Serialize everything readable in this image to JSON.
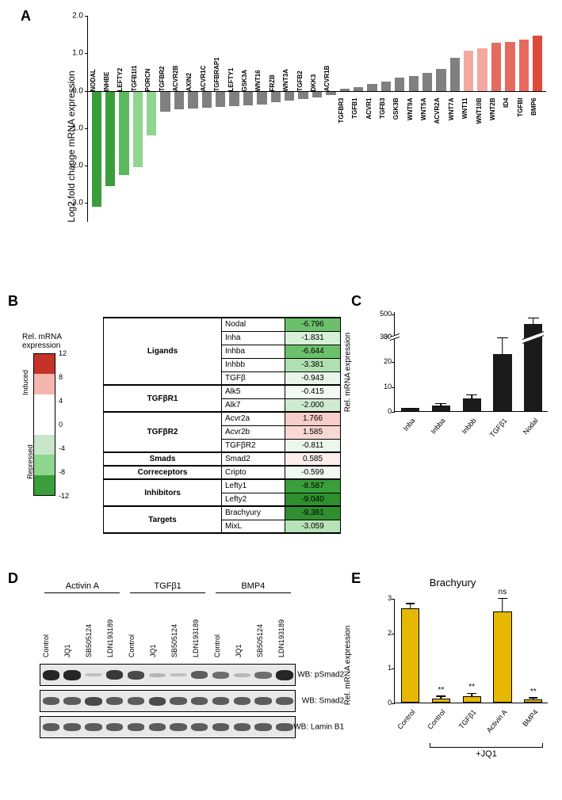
{
  "panelA": {
    "label": "A",
    "ylabel": "Log2 fold change mRNA expression",
    "ylim": [
      -3.5,
      2.0
    ],
    "ytick_step": 1.0,
    "colors": {
      "green_dark": "#3a9e3a",
      "green_mid": "#5cb85c",
      "green_light": "#8ed68e",
      "gray": "#808080",
      "pink_light": "#f4a8a0",
      "red_mid": "#e66b5f",
      "red_dark": "#e04a3c"
    },
    "bars": [
      {
        "name": "NODAL",
        "val": -3.1,
        "color": "#3a9e3a"
      },
      {
        "name": "INHBE",
        "val": -2.55,
        "color": "#3a9e3a"
      },
      {
        "name": "LEFTY2",
        "val": -2.25,
        "color": "#5cb85c"
      },
      {
        "name": "TGFB1I1",
        "val": -2.05,
        "color": "#8ed68e"
      },
      {
        "name": "PORCN",
        "val": -1.2,
        "color": "#8ed68e"
      },
      {
        "name": "TGFBR2",
        "val": -0.55,
        "color": "#808080"
      },
      {
        "name": "ACVR2B",
        "val": -0.5,
        "color": "#808080"
      },
      {
        "name": "AXIN2",
        "val": -0.48,
        "color": "#808080"
      },
      {
        "name": "ACVR1C",
        "val": -0.46,
        "color": "#808080"
      },
      {
        "name": "TGFBRAP1",
        "val": -0.44,
        "color": "#808080"
      },
      {
        "name": "LEFTY1",
        "val": -0.42,
        "color": "#808080"
      },
      {
        "name": "GSK3A",
        "val": -0.4,
        "color": "#808080"
      },
      {
        "name": "WNT16",
        "val": -0.36,
        "color": "#808080"
      },
      {
        "name": "FRZB",
        "val": -0.3,
        "color": "#808080"
      },
      {
        "name": "WNT3A",
        "val": -0.26,
        "color": "#808080"
      },
      {
        "name": "TGFB2",
        "val": -0.22,
        "color": "#808080"
      },
      {
        "name": "DKK3",
        "val": -0.18,
        "color": "#808080"
      },
      {
        "name": "ACVR1B",
        "val": -0.12,
        "color": "#808080"
      },
      {
        "name": "TGFBR3",
        "val": 0.05,
        "color": "#808080"
      },
      {
        "name": "TGFB1",
        "val": 0.1,
        "color": "#808080"
      },
      {
        "name": "ACVR1",
        "val": 0.18,
        "color": "#808080"
      },
      {
        "name": "TGFB3",
        "val": 0.24,
        "color": "#808080"
      },
      {
        "name": "GSK3B",
        "val": 0.36,
        "color": "#808080"
      },
      {
        "name": "WNT9A",
        "val": 0.4,
        "color": "#808080"
      },
      {
        "name": "WNT5A",
        "val": 0.48,
        "color": "#808080"
      },
      {
        "name": "ACVR2A",
        "val": 0.58,
        "color": "#808080"
      },
      {
        "name": "WNT7A",
        "val": 0.88,
        "color": "#808080"
      },
      {
        "name": "WNT11",
        "val": 1.08,
        "color": "#f4a8a0"
      },
      {
        "name": "WNT10B",
        "val": 1.14,
        "color": "#f4a8a0"
      },
      {
        "name": "WNT2B",
        "val": 1.28,
        "color": "#e66b5f"
      },
      {
        "name": "ID4",
        "val": 1.3,
        "color": "#e66b5f"
      },
      {
        "name": "TGFBI",
        "val": 1.36,
        "color": "#e66b5f"
      },
      {
        "name": "BMP6",
        "val": 1.48,
        "color": "#e04a3c"
      }
    ]
  },
  "panelB": {
    "label": "B",
    "colorbar": {
      "title": "Rel. mRNA\nexpression",
      "side_induced": "Induced",
      "side_repressed": "Repressed",
      "ticks": [
        12,
        8,
        4,
        0,
        -4,
        -8,
        -12
      ],
      "box_colors": [
        "#c73228",
        "#f4b6ae",
        "#ffffff",
        "#ffffff",
        "#c8e6c9",
        "#8ed68e",
        "#3a9e3a"
      ]
    },
    "groups": [
      {
        "name": "Ligands",
        "rows": [
          {
            "gene": "Nodal",
            "val": -6.796,
            "bg": "#6cc06c"
          },
          {
            "gene": "Inha",
            "val": -1.831,
            "bg": "#d8efd8"
          },
          {
            "gene": "Inhba",
            "val": -6.644,
            "bg": "#6cc06c"
          },
          {
            "gene": "Inhbb",
            "val": -3.381,
            "bg": "#b0e0b0"
          },
          {
            "gene": "TGFβ",
            "val": -0.943,
            "bg": "#e8f5e8"
          }
        ]
      },
      {
        "name": "TGFβR1",
        "rows": [
          {
            "gene": "Alk5",
            "val": -0.415,
            "bg": "#f2faf2"
          },
          {
            "gene": "Alk7",
            "val": -2.0,
            "bg": "#cfeacf"
          }
        ]
      },
      {
        "name": "TGFβR2",
        "rows": [
          {
            "gene": "Acvr2a",
            "val": 1.766,
            "bg": "#f7cec9"
          },
          {
            "gene": "Acvr2b",
            "val": 1.585,
            "bg": "#f9d8d4"
          },
          {
            "gene": "TGFβR2",
            "val": -0.811,
            "bg": "#ecf7ec"
          }
        ]
      },
      {
        "name": "Smads",
        "rows": [
          {
            "gene": "Smad2",
            "val": 0.585,
            "bg": "#fdeeec"
          }
        ]
      },
      {
        "name": "Correceptors",
        "rows": [
          {
            "gene": "Cripto",
            "val": -0.599,
            "bg": "#f0f9f0"
          }
        ]
      },
      {
        "name": "Inhibitors",
        "rows": [
          {
            "gene": "Lefty1",
            "val": -8.587,
            "bg": "#3a9e3a"
          },
          {
            "gene": "Lefty2",
            "val": -9.04,
            "bg": "#2f8f2f"
          }
        ]
      },
      {
        "name": "Targets",
        "rows": [
          {
            "gene": "Brachyury",
            "val": -9.381,
            "bg": "#2f8f2f"
          },
          {
            "gene": "MixL",
            "val": -3.059,
            "bg": "#b8e2b8"
          }
        ]
      }
    ]
  },
  "panelC": {
    "label": "C",
    "ylabel": "Rel. mRNA expression",
    "yticks_low": [
      0,
      10,
      20,
      30
    ],
    "yticks_high": [
      300,
      500
    ],
    "axis_break_frac": 0.75,
    "bars": [
      {
        "name": "Inba",
        "val": 1.3,
        "err": 0.3
      },
      {
        "name": "Inbba",
        "val": 2.3,
        "err": 1.2
      },
      {
        "name": "Inbbb",
        "val": 5.2,
        "err": 1.8
      },
      {
        "name": "TGFβ1",
        "val": 23,
        "err": 7
      },
      {
        "name": "Nodal",
        "val": 410,
        "err": 60,
        "broken": true
      }
    ],
    "bar_color": "#1a1a1a"
  },
  "panelD": {
    "label": "D",
    "groups": [
      "Activin A",
      "TGFβ1",
      "BMP4"
    ],
    "lanes_per_group": [
      "Control",
      "JQ1",
      "SB505124",
      "LDN193189"
    ],
    "blots": [
      {
        "label": "WB: pSmad2",
        "intensity": [
          0.9,
          0.9,
          0.05,
          0.8,
          0.7,
          0.1,
          0.05,
          0.6,
          0.5,
          0.1,
          0.5,
          0.9
        ]
      },
      {
        "label": "WB: Smad2",
        "intensity": [
          0.6,
          0.6,
          0.7,
          0.6,
          0.6,
          0.7,
          0.6,
          0.6,
          0.6,
          0.6,
          0.6,
          0.6
        ]
      },
      {
        "label": "WB: Lamin B1",
        "intensity": [
          0.6,
          0.6,
          0.6,
          0.6,
          0.6,
          0.6,
          0.6,
          0.6,
          0.6,
          0.6,
          0.6,
          0.6
        ]
      }
    ]
  },
  "panelE": {
    "label": "E",
    "title": "Brachyury",
    "ylabel": "Rel. mRNA expression",
    "ylim": [
      0,
      3
    ],
    "ytick_step": 1,
    "bar_color": "#e6b800",
    "categories": [
      {
        "name": "Control",
        "val": 2.7,
        "err": 0.12,
        "sig": ""
      },
      {
        "name": "Control",
        "val": 0.12,
        "err": 0.05,
        "sig": "**"
      },
      {
        "name": "TGFβ1",
        "val": 0.18,
        "err": 0.06,
        "sig": "**"
      },
      {
        "name": "Activin A",
        "val": 2.62,
        "err": 0.35,
        "sig": "ns"
      },
      {
        "name": "BMP4",
        "val": 0.08,
        "err": 0.04,
        "sig": "**"
      }
    ],
    "jq1_bracket": {
      "label": "+JQ1",
      "from": 1,
      "to": 4
    }
  }
}
